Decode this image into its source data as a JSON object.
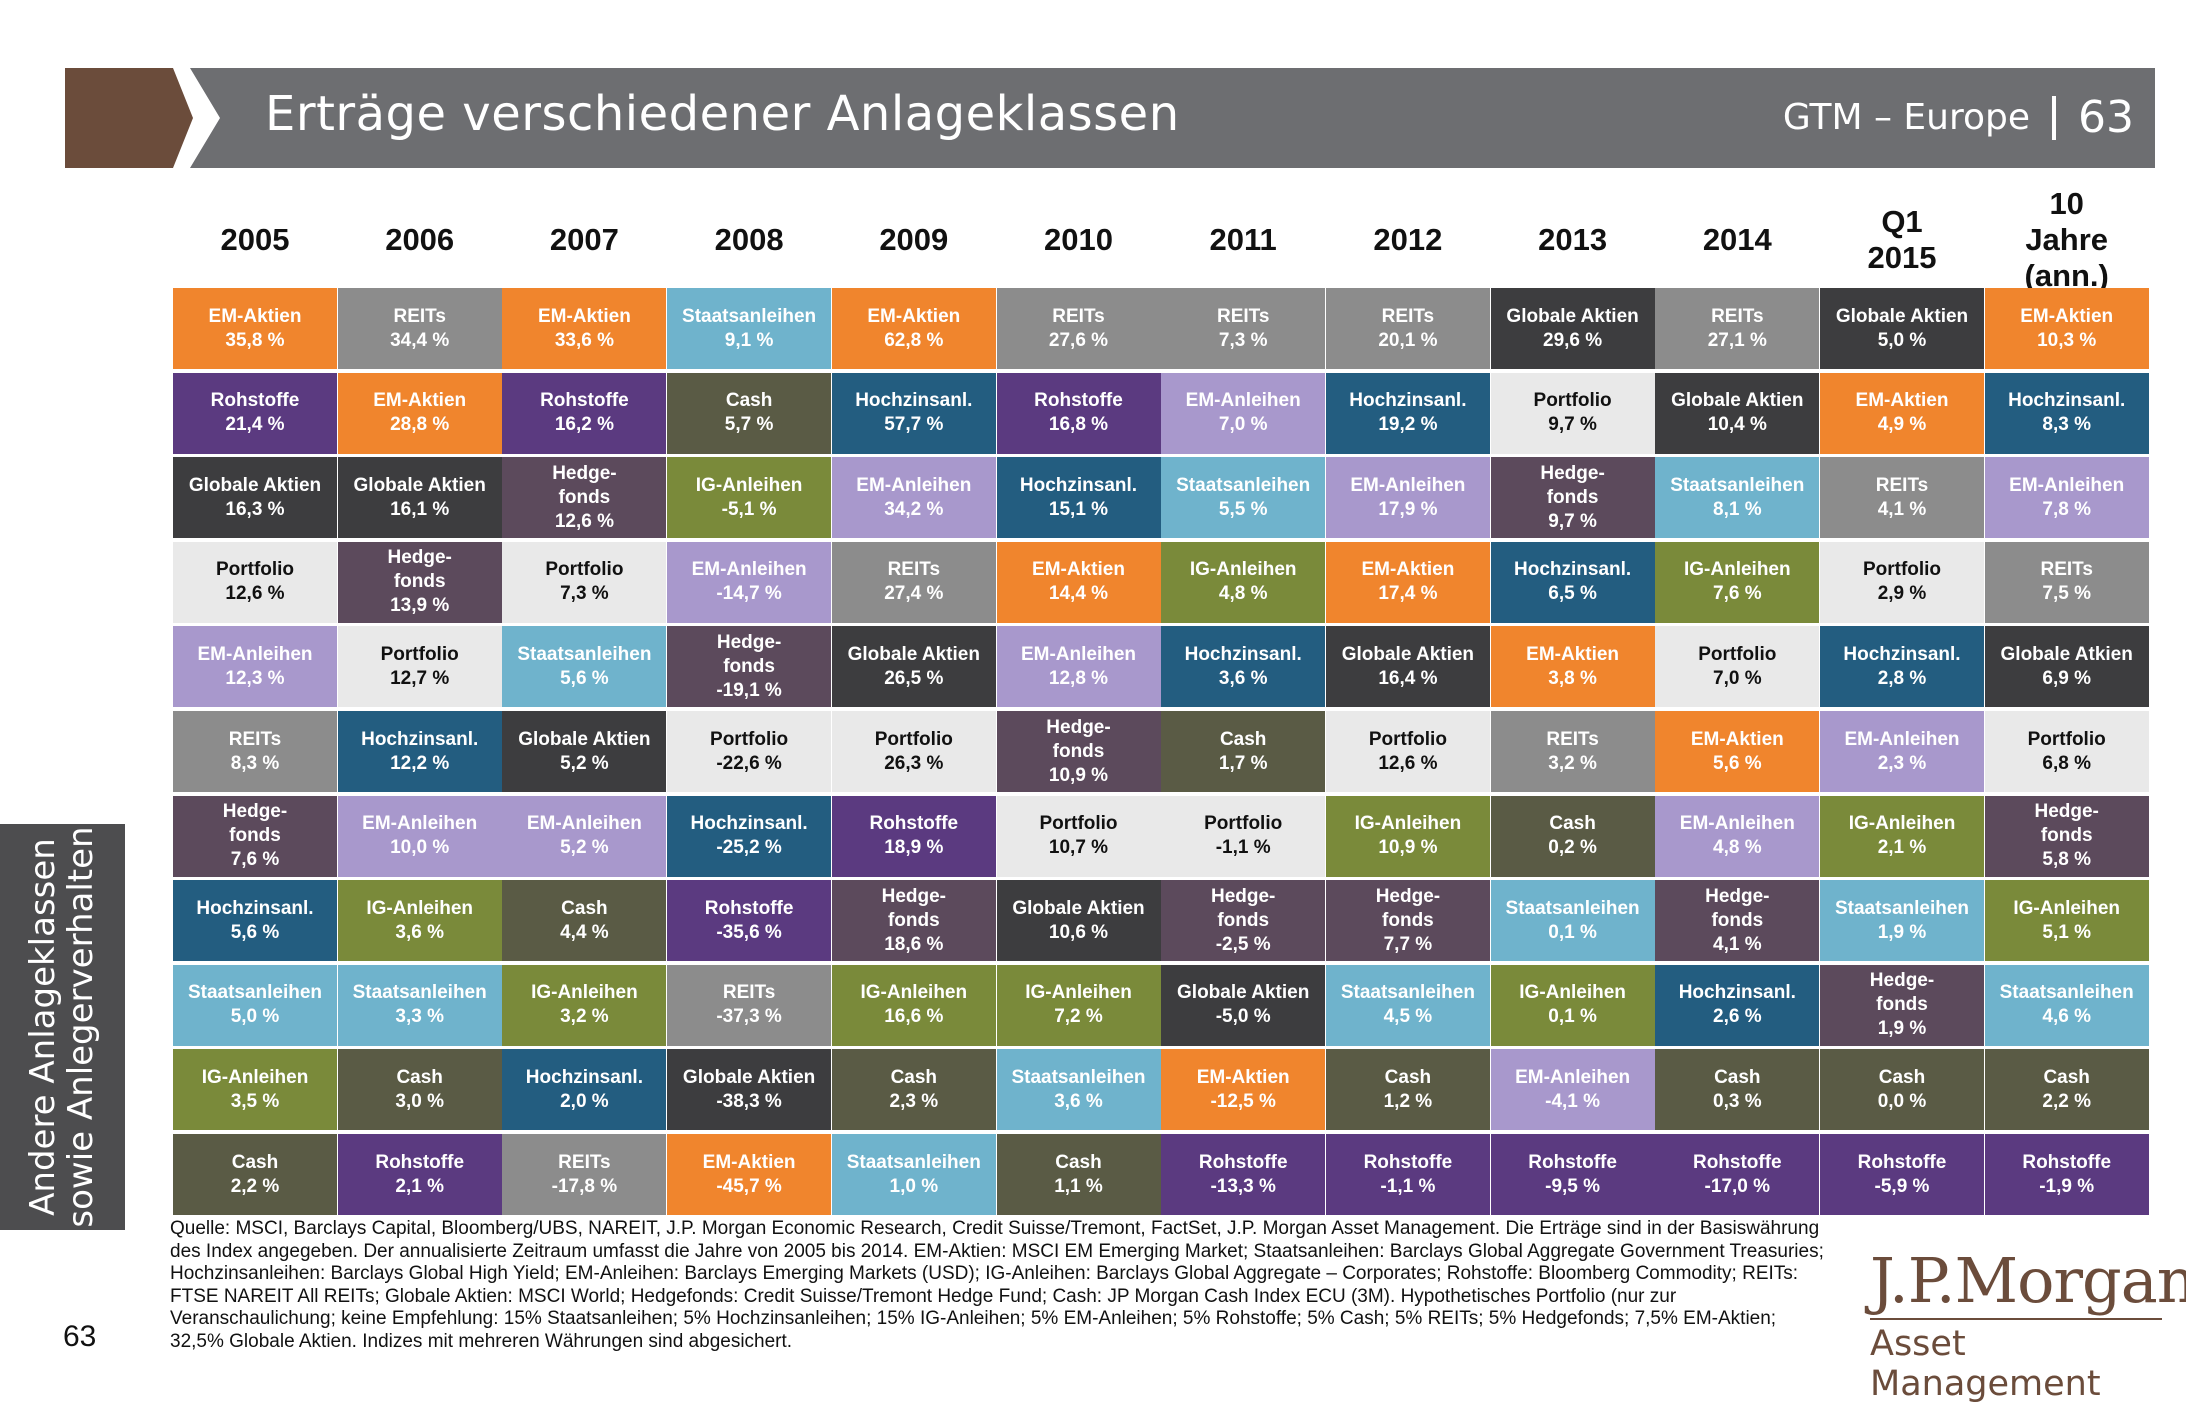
{
  "header": {
    "title": "Erträge verschiedener Anlageklassen",
    "series": "GTM – Europe",
    "page": "63"
  },
  "colors": {
    "EM-Aktien": "#f0852d",
    "REITs": "#8c8c8c",
    "Staatsanleihen": "#6fb3cc",
    "Globale Aktien": "#3d3d3f",
    "Globale Atkien": "#3d3d3f",
    "Rohstoffe": "#5b3a80",
    "Cash": "#5a5b45",
    "Hochzinsanl.": "#235d80",
    "Portfolio": "#e9e9e9",
    "IG-Anleihen": "#7a8a3a",
    "EM-Anleihen": "#a898cc",
    "Hedge-fonds": "#5c4a5c"
  },
  "chart_data": {
    "type": "table",
    "title": "Erträge verschiedener Anlageklassen",
    "columns": [
      "2005",
      "2006",
      "2007",
      "2008",
      "2009",
      "2010",
      "2011",
      "2012",
      "2013",
      "2014",
      "Q1 2015",
      "10 Jahre (ann.)"
    ],
    "grid": [
      [
        {
          "asset": "EM-Aktien",
          "value": "35,8 %"
        },
        {
          "asset": "Rohstoffe",
          "value": "21,4 %"
        },
        {
          "asset": "Globale Aktien",
          "value": "16,3 %"
        },
        {
          "asset": "Portfolio",
          "value": "12,6 %"
        },
        {
          "asset": "EM-Anleihen",
          "value": "12,3 %"
        },
        {
          "asset": "REITs",
          "value": "8,3 %"
        },
        {
          "asset": "Hedge-fonds",
          "value": "7,6 %"
        },
        {
          "asset": "Hochzinsanl.",
          "value": "5,6 %"
        },
        {
          "asset": "Staatsanleihen",
          "value": "5,0 %"
        },
        {
          "asset": "IG-Anleihen",
          "value": "3,5 %"
        },
        {
          "asset": "Cash",
          "value": "2,2 %"
        }
      ],
      [
        {
          "asset": "REITs",
          "value": "34,4 %"
        },
        {
          "asset": "EM-Aktien",
          "value": "28,8 %"
        },
        {
          "asset": "Globale Aktien",
          "value": "16,1 %"
        },
        {
          "asset": "Hedge-fonds",
          "value": "13,9 %"
        },
        {
          "asset": "Portfolio",
          "value": "12,7 %"
        },
        {
          "asset": "Hochzinsanl.",
          "value": "12,2 %"
        },
        {
          "asset": "EM-Anleihen",
          "value": "10,0 %"
        },
        {
          "asset": "IG-Anleihen",
          "value": "3,6 %"
        },
        {
          "asset": "Staatsanleihen",
          "value": "3,3 %"
        },
        {
          "asset": "Cash",
          "value": "3,0 %"
        },
        {
          "asset": "Rohstoffe",
          "value": "2,1 %"
        }
      ],
      [
        {
          "asset": "EM-Aktien",
          "value": "33,6 %"
        },
        {
          "asset": "Rohstoffe",
          "value": "16,2 %"
        },
        {
          "asset": "Hedge-fonds",
          "value": "12,6 %"
        },
        {
          "asset": "Portfolio",
          "value": "7,3 %"
        },
        {
          "asset": "Staatsanleihen",
          "value": "5,6 %"
        },
        {
          "asset": "Globale Aktien",
          "value": "5,2 %"
        },
        {
          "asset": "EM-Anleihen",
          "value": "5,2 %"
        },
        {
          "asset": "Cash",
          "value": "4,4 %"
        },
        {
          "asset": "IG-Anleihen",
          "value": "3,2 %"
        },
        {
          "asset": "Hochzinsanl.",
          "value": "2,0 %"
        },
        {
          "asset": "REITs",
          "value": "-17,8 %"
        }
      ],
      [
        {
          "asset": "Staatsanleihen",
          "value": "9,1 %"
        },
        {
          "asset": "Cash",
          "value": "5,7 %"
        },
        {
          "asset": "IG-Anleihen",
          "value": "-5,1 %"
        },
        {
          "asset": "EM-Anleihen",
          "value": "-14,7 %"
        },
        {
          "asset": "Hedge-fonds",
          "value": "-19,1 %"
        },
        {
          "asset": "Portfolio",
          "value": "-22,6 %"
        },
        {
          "asset": "Hochzinsanl.",
          "value": "-25,2 %"
        },
        {
          "asset": "Rohstoffe",
          "value": "-35,6 %"
        },
        {
          "asset": "REITs",
          "value": "-37,3 %"
        },
        {
          "asset": "Globale Aktien",
          "value": "-38,3 %"
        },
        {
          "asset": "EM-Aktien",
          "value": "-45,7 %"
        }
      ],
      [
        {
          "asset": "EM-Aktien",
          "value": "62,8 %"
        },
        {
          "asset": "Hochzinsanl.",
          "value": "57,7 %"
        },
        {
          "asset": "EM-Anleihen",
          "value": "34,2 %"
        },
        {
          "asset": "REITs",
          "value": "27,4 %"
        },
        {
          "asset": "Globale Aktien",
          "value": "26,5 %"
        },
        {
          "asset": "Portfolio",
          "value": "26,3 %"
        },
        {
          "asset": "Rohstoffe",
          "value": "18,9 %"
        },
        {
          "asset": "Hedge-fonds",
          "value": "18,6 %"
        },
        {
          "asset": "IG-Anleihen",
          "value": "16,6 %"
        },
        {
          "asset": "Cash",
          "value": "2,3 %"
        },
        {
          "asset": "Staatsanleihen",
          "value": "1,0 %"
        }
      ],
      [
        {
          "asset": "REITs",
          "value": "27,6 %"
        },
        {
          "asset": "Rohstoffe",
          "value": "16,8 %"
        },
        {
          "asset": "Hochzinsanl.",
          "value": "15,1 %"
        },
        {
          "asset": "EM-Aktien",
          "value": "14,4 %"
        },
        {
          "asset": "EM-Anleihen",
          "value": "12,8 %"
        },
        {
          "asset": "Hedge-fonds",
          "value": "10,9 %"
        },
        {
          "asset": "Portfolio",
          "value": "10,7 %"
        },
        {
          "asset": "Globale Aktien",
          "value": "10,6 %"
        },
        {
          "asset": "IG-Anleihen",
          "value": "7,2 %"
        },
        {
          "asset": "Staatsanleihen",
          "value": "3,6 %"
        },
        {
          "asset": "Cash",
          "value": "1,1 %"
        }
      ],
      [
        {
          "asset": "REITs",
          "value": "7,3 %"
        },
        {
          "asset": "EM-Anleihen",
          "value": "7,0 %"
        },
        {
          "asset": "Staatsanleihen",
          "value": "5,5 %"
        },
        {
          "asset": "IG-Anleihen",
          "value": "4,8 %"
        },
        {
          "asset": "Hochzinsanl.",
          "value": "3,6 %"
        },
        {
          "asset": "Cash",
          "value": "1,7 %"
        },
        {
          "asset": "Portfolio",
          "value": "-1,1 %"
        },
        {
          "asset": "Hedge-fonds",
          "value": "-2,5 %"
        },
        {
          "asset": "Globale Aktien",
          "value": "-5,0 %"
        },
        {
          "asset": "EM-Aktien",
          "value": "-12,5 %"
        },
        {
          "asset": "Rohstoffe",
          "value": "-13,3 %"
        }
      ],
      [
        {
          "asset": "REITs",
          "value": "20,1 %"
        },
        {
          "asset": "Hochzinsanl.",
          "value": "19,2 %"
        },
        {
          "asset": "EM-Anleihen",
          "value": "17,9 %"
        },
        {
          "asset": "EM-Aktien",
          "value": "17,4 %"
        },
        {
          "asset": "Globale Aktien",
          "value": "16,4 %"
        },
        {
          "asset": "Portfolio",
          "value": "12,6 %"
        },
        {
          "asset": "IG-Anleihen",
          "value": "10,9 %"
        },
        {
          "asset": "Hedge-fonds",
          "value": "7,7 %"
        },
        {
          "asset": "Staatsanleihen",
          "value": "4,5 %"
        },
        {
          "asset": "Cash",
          "value": "1,2 %"
        },
        {
          "asset": "Rohstoffe",
          "value": "-1,1 %"
        }
      ],
      [
        {
          "asset": "Globale Aktien",
          "value": "29,6 %"
        },
        {
          "asset": "Portfolio",
          "value": "9,7 %"
        },
        {
          "asset": "Hedge-fonds",
          "value": "9,7 %"
        },
        {
          "asset": "Hochzinsanl.",
          "value": "6,5 %"
        },
        {
          "asset": "EM-Aktien",
          "value": "3,8 %"
        },
        {
          "asset": "REITs",
          "value": "3,2 %"
        },
        {
          "asset": "Cash",
          "value": "0,2 %"
        },
        {
          "asset": "Staatsanleihen",
          "value": "0,1 %"
        },
        {
          "asset": "IG-Anleihen",
          "value": "0,1 %"
        },
        {
          "asset": "EM-Anleihen",
          "value": "-4,1 %"
        },
        {
          "asset": "Rohstoffe",
          "value": "-9,5 %"
        }
      ],
      [
        {
          "asset": "REITs",
          "value": "27,1 %"
        },
        {
          "asset": "Globale Aktien",
          "value": "10,4 %"
        },
        {
          "asset": "Staatsanleihen",
          "value": "8,1 %"
        },
        {
          "asset": "IG-Anleihen",
          "value": "7,6 %"
        },
        {
          "asset": "Portfolio",
          "value": "7,0 %"
        },
        {
          "asset": "EM-Aktien",
          "value": "5,6 %"
        },
        {
          "asset": "EM-Anleihen",
          "value": "4,8 %"
        },
        {
          "asset": "Hedge-fonds",
          "value": "4,1 %"
        },
        {
          "asset": "Hochzinsanl.",
          "value": "2,6 %"
        },
        {
          "asset": "Cash",
          "value": "0,3 %"
        },
        {
          "asset": "Rohstoffe",
          "value": "-17,0 %"
        }
      ],
      [
        {
          "asset": "Globale Aktien",
          "value": "5,0 %"
        },
        {
          "asset": "EM-Aktien",
          "value": "4,9 %"
        },
        {
          "asset": "REITs",
          "value": "4,1 %"
        },
        {
          "asset": "Portfolio",
          "value": "2,9 %"
        },
        {
          "asset": "Hochzinsanl.",
          "value": "2,8 %"
        },
        {
          "asset": "EM-Anleihen",
          "value": "2,3 %"
        },
        {
          "asset": "IG-Anleihen",
          "value": "2,1 %"
        },
        {
          "asset": "Staatsanleihen",
          "value": "1,9 %"
        },
        {
          "asset": "Hedge-fonds",
          "value": "1,9 %"
        },
        {
          "asset": "Cash",
          "value": "0,0 %"
        },
        {
          "asset": "Rohstoffe",
          "value": "-5,9 %"
        }
      ],
      [
        {
          "asset": "EM-Aktien",
          "value": "10,3 %"
        },
        {
          "asset": "Hochzinsanl.",
          "value": "8,3 %"
        },
        {
          "asset": "EM-Anleihen",
          "value": "7,8 %"
        },
        {
          "asset": "REITs",
          "value": "7,5 %"
        },
        {
          "asset": "Globale Atkien",
          "value": "6,9 %"
        },
        {
          "asset": "Portfolio",
          "value": "6,8 %"
        },
        {
          "asset": "Hedge-fonds",
          "value": "5,8 %"
        },
        {
          "asset": "IG-Anleihen",
          "value": "5,1 %"
        },
        {
          "asset": "Staatsanleihen",
          "value": "4,6 %"
        },
        {
          "asset": "Cash",
          "value": "2,2 %"
        },
        {
          "asset": "Rohstoffe",
          "value": "-1,9 %"
        }
      ]
    ]
  },
  "sidebar": {
    "line1": "Andere Anlageklassen",
    "line2": "sowie Anlegerverhalten"
  },
  "footnote": "Quelle: MSCI, Barclays Capital, Bloomberg/UBS, NAREIT, J.P. Morgan Economic Research, Credit Suisse/Tremont, FactSet, J.P. Morgan Asset Management. Die Erträge sind in der Basiswährung des Index angegeben. Der annualisierte Zeitraum umfasst die Jahre von 2005 bis 2014. EM-Aktien: MSCI EM Emerging Market; Staatsanleihen: Barclays Global Aggregate Government Treasuries; Hochzinsanleihen: Barclays Global High Yield; EM-Anleihen: Barclays Emerging Markets (USD); IG-Anleihen: Barclays Global Aggregate – Corporates; Rohstoffe: Bloomberg Commodity; REITs: FTSE NAREIT All REITs; Globale Aktien: MSCI World; Hedgefonds: Credit Suisse/Tremont Hedge Fund; Cash: JP Morgan Cash Index ECU (3M). Hypothetisches Portfolio (nur zur Veranschaulichung; keine Empfehlung: 15% Staatsanleihen; 5% Hochzinsanleihen; 15% IG-Anleihen; 5% EM-Anleihen; 5% Rohstoffe; 5% Cash; 5% REITs; 5% Hedgefonds; 7,5% EM-Aktien; 32,5% Globale Aktien. Indizes mit mehreren Währungen sind abgesichert.",
  "page_number": "63",
  "logo": {
    "main": "J.P.Morgan",
    "sub": "Asset Management"
  }
}
